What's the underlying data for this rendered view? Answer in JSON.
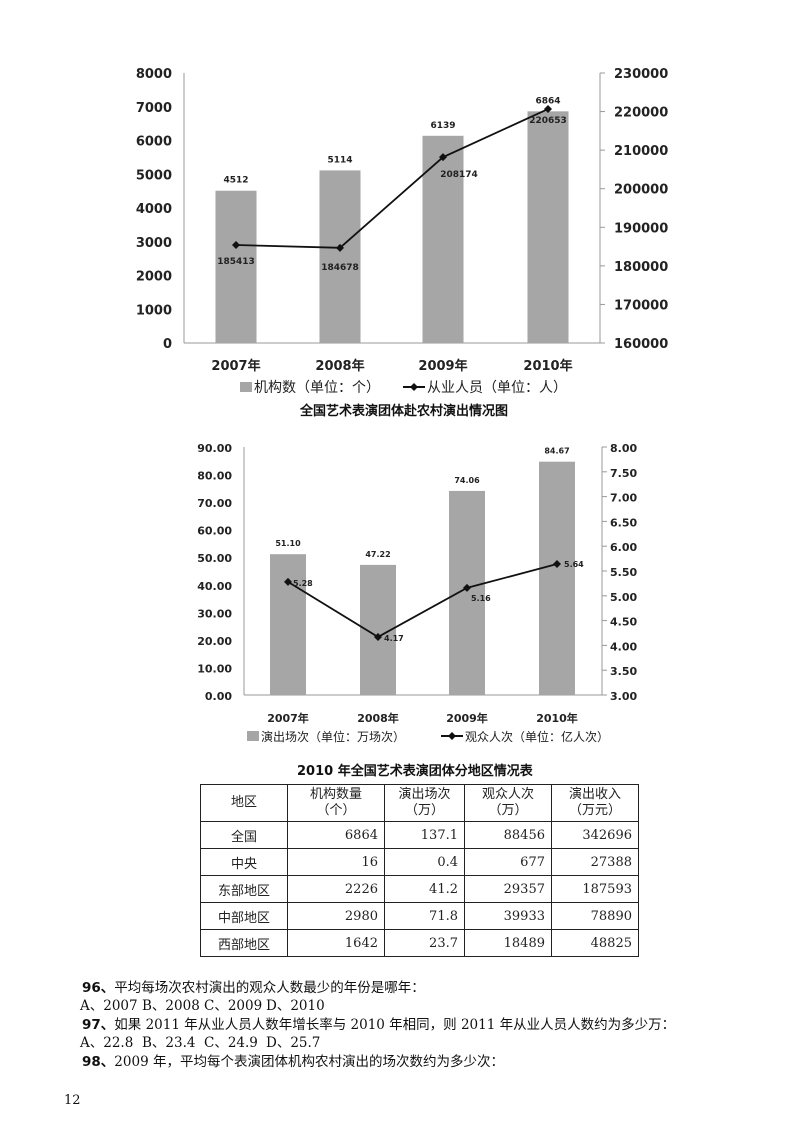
{
  "chart_data": [
    {
      "type": "bar+line",
      "title": "全国艺术表演团体赴农村演出情况图",
      "categories": [
        "2007年",
        "2008年",
        "2009年",
        "2010年"
      ],
      "series": [
        {
          "name": "机构数（单位：个）",
          "type": "bar",
          "axis": "left",
          "values": [
            4512,
            5114,
            6139,
            6864
          ],
          "labels": [
            "4512",
            "5114",
            "6139",
            "6864"
          ]
        },
        {
          "name": "从业人员（单位：人）",
          "type": "line",
          "axis": "right",
          "values": [
            185413,
            184678,
            208174,
            220653
          ],
          "labels": [
            "185413",
            "184678",
            "208174",
            "220653"
          ]
        }
      ],
      "left_axis": {
        "range": [
          0,
          8000
        ],
        "ticks": [
          "0",
          "1000",
          "2000",
          "3000",
          "4000",
          "5000",
          "6000",
          "7000",
          "8000"
        ]
      },
      "right_axis": {
        "range": [
          160000,
          230000
        ],
        "ticks": [
          "160000",
          "170000",
          "180000",
          "190000",
          "200000",
          "210000",
          "220000",
          "230000"
        ]
      },
      "grid": false,
      "legend": "bottom",
      "colors": {
        "bar": "#a6a6a6",
        "line": "#111111"
      }
    },
    {
      "type": "bar+line",
      "title": "",
      "categories": [
        "2007年",
        "2008年",
        "2009年",
        "2010年"
      ],
      "series": [
        {
          "name": "演出场次（单位：万场次）",
          "type": "bar",
          "axis": "left",
          "values": [
            51.1,
            47.22,
            74.06,
            84.67
          ],
          "labels": [
            "51.10",
            "47.22",
            "74.06",
            "84.67"
          ]
        },
        {
          "name": "观众人次（单位：亿人次）",
          "type": "line",
          "axis": "right",
          "values": [
            5.28,
            4.17,
            5.16,
            5.64
          ],
          "labels": [
            "5.28",
            "4.17",
            "5.16",
            "5.64"
          ]
        }
      ],
      "left_axis": {
        "range": [
          0,
          90
        ],
        "ticks": [
          "0.00",
          "10.00",
          "20.00",
          "30.00",
          "40.00",
          "50.00",
          "60.00",
          "70.00",
          "80.00",
          "90.00"
        ]
      },
      "right_axis": {
        "range": [
          3,
          8
        ],
        "ticks": [
          "3.00",
          "3.50",
          "4.00",
          "4.50",
          "5.00",
          "5.50",
          "6.00",
          "6.50",
          "7.00",
          "7.50",
          "8.00"
        ]
      },
      "grid": false,
      "legend": "bottom",
      "colors": {
        "bar": "#a6a6a6",
        "line": "#111111"
      }
    }
  ],
  "table": {
    "title": "2010 年全国艺术表演团体分地区情况表",
    "headers": [
      [
        "地区",
        ""
      ],
      [
        "机构数量",
        "（个）"
      ],
      [
        "演出场次",
        "（万）"
      ],
      [
        "观众人次",
        "（万）"
      ],
      [
        "演出收入",
        "（万元）"
      ]
    ],
    "rows": [
      [
        "全国",
        "6864",
        "137.1",
        "88456",
        "342696"
      ],
      [
        "中央",
        "16",
        "0.4",
        "677",
        "27388"
      ],
      [
        "东部地区",
        "2226",
        "41.2",
        "29357",
        "187593"
      ],
      [
        "中部地区",
        "2980",
        "71.8",
        "39933",
        "78890"
      ],
      [
        "西部地区",
        "1642",
        "23.7",
        "18489",
        "48825"
      ]
    ]
  },
  "questions": [
    {
      "num": "96、",
      "text": "平均每场次农村演出的观众人数最少的年份是哪年：",
      "options": [
        "A、2007",
        "B、2008",
        "C、2009",
        "D、2010"
      ]
    },
    {
      "num": "97、",
      "text": "如果 2011 年从业人员人数年增长率与 2010 年相同，则 2011 年从业人员人数约为多少万：",
      "options": [
        "A、22.8",
        "B、23.4",
        "C、24.9",
        "D、25.7"
      ]
    },
    {
      "num": "98、",
      "text": "2009 年，平均每个表演团体机构农村演出的场次数约为多少次：",
      "options": []
    }
  ],
  "page_number": "12"
}
